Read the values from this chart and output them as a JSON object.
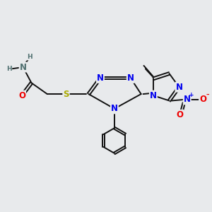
{
  "background_color": "#e8eaec",
  "figsize": [
    3.0,
    3.0
  ],
  "dpi": 100,
  "atom_colors": {
    "C": "#000000",
    "N": "#0000ee",
    "O": "#ee0000",
    "S": "#aaaa00",
    "H": "#507070"
  },
  "bond_color": "#111111",
  "bond_width": 1.4,
  "font_size_atom": 8.5,
  "font_size_small": 6.5
}
